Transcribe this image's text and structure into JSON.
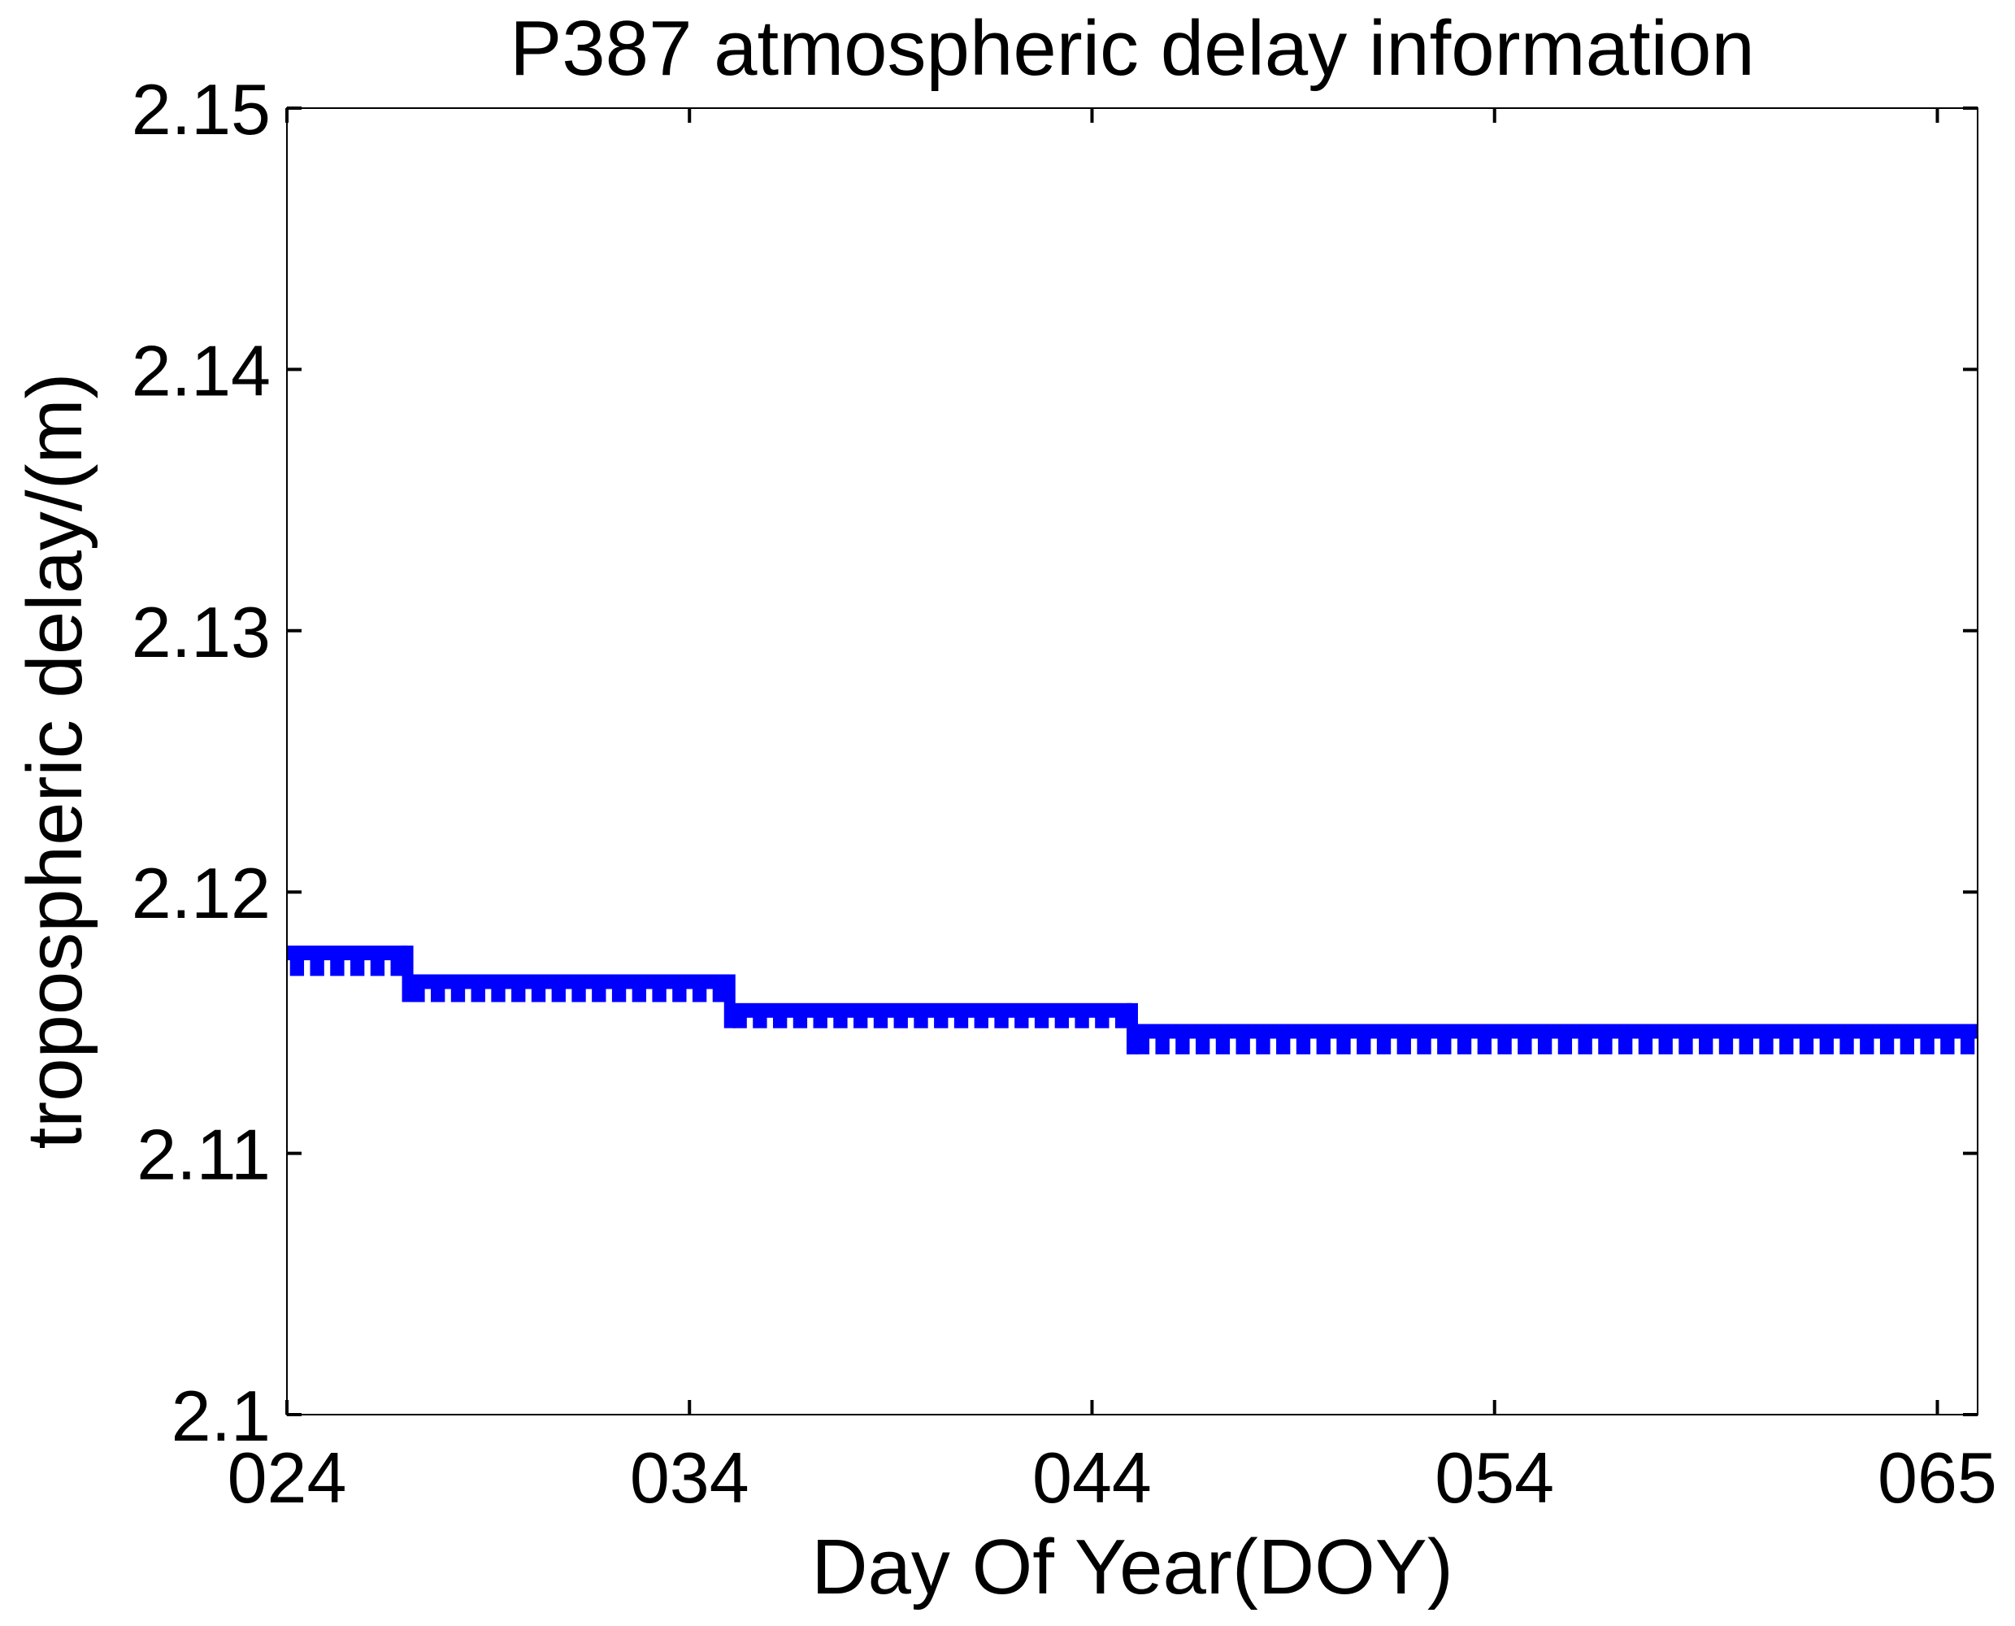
{
  "chart_data": {
    "type": "line",
    "title": "P387 atmospheric delay information",
    "xlabel": "Day Of Year(DOY)",
    "ylabel": "tropospheric delay/(m)",
    "xlim": [
      24,
      66
    ],
    "ylim": [
      2.1,
      2.15
    ],
    "xticks": [
      {
        "value": 24,
        "label": "024"
      },
      {
        "value": 34,
        "label": "034"
      },
      {
        "value": 44,
        "label": "044"
      },
      {
        "value": 54,
        "label": "054"
      },
      {
        "value": 65,
        "label": "065"
      }
    ],
    "yticks": [
      {
        "value": 2.1,
        "label": "2.1"
      },
      {
        "value": 2.11,
        "label": "2.11"
      },
      {
        "value": 2.12,
        "label": "2.12"
      },
      {
        "value": 2.13,
        "label": "2.13"
      },
      {
        "value": 2.14,
        "label": "2.14"
      },
      {
        "value": 2.15,
        "label": "2.15"
      }
    ],
    "grid": false,
    "legend": "none",
    "series": [
      {
        "color": "#0000ff",
        "segments": [
          {
            "x_start": 24,
            "x_end": 27,
            "y_upper": 2.1177,
            "y_lower": 2.1171
          },
          {
            "x_start": 27,
            "x_end": 35,
            "y_upper": 2.1166,
            "y_lower": 2.1161
          },
          {
            "x_start": 35,
            "x_end": 45,
            "y_upper": 2.1155,
            "y_lower": 2.1151
          },
          {
            "x_start": 45,
            "x_end": 66,
            "y_upper": 2.1147,
            "y_lower": 2.1141
          }
        ]
      }
    ]
  }
}
